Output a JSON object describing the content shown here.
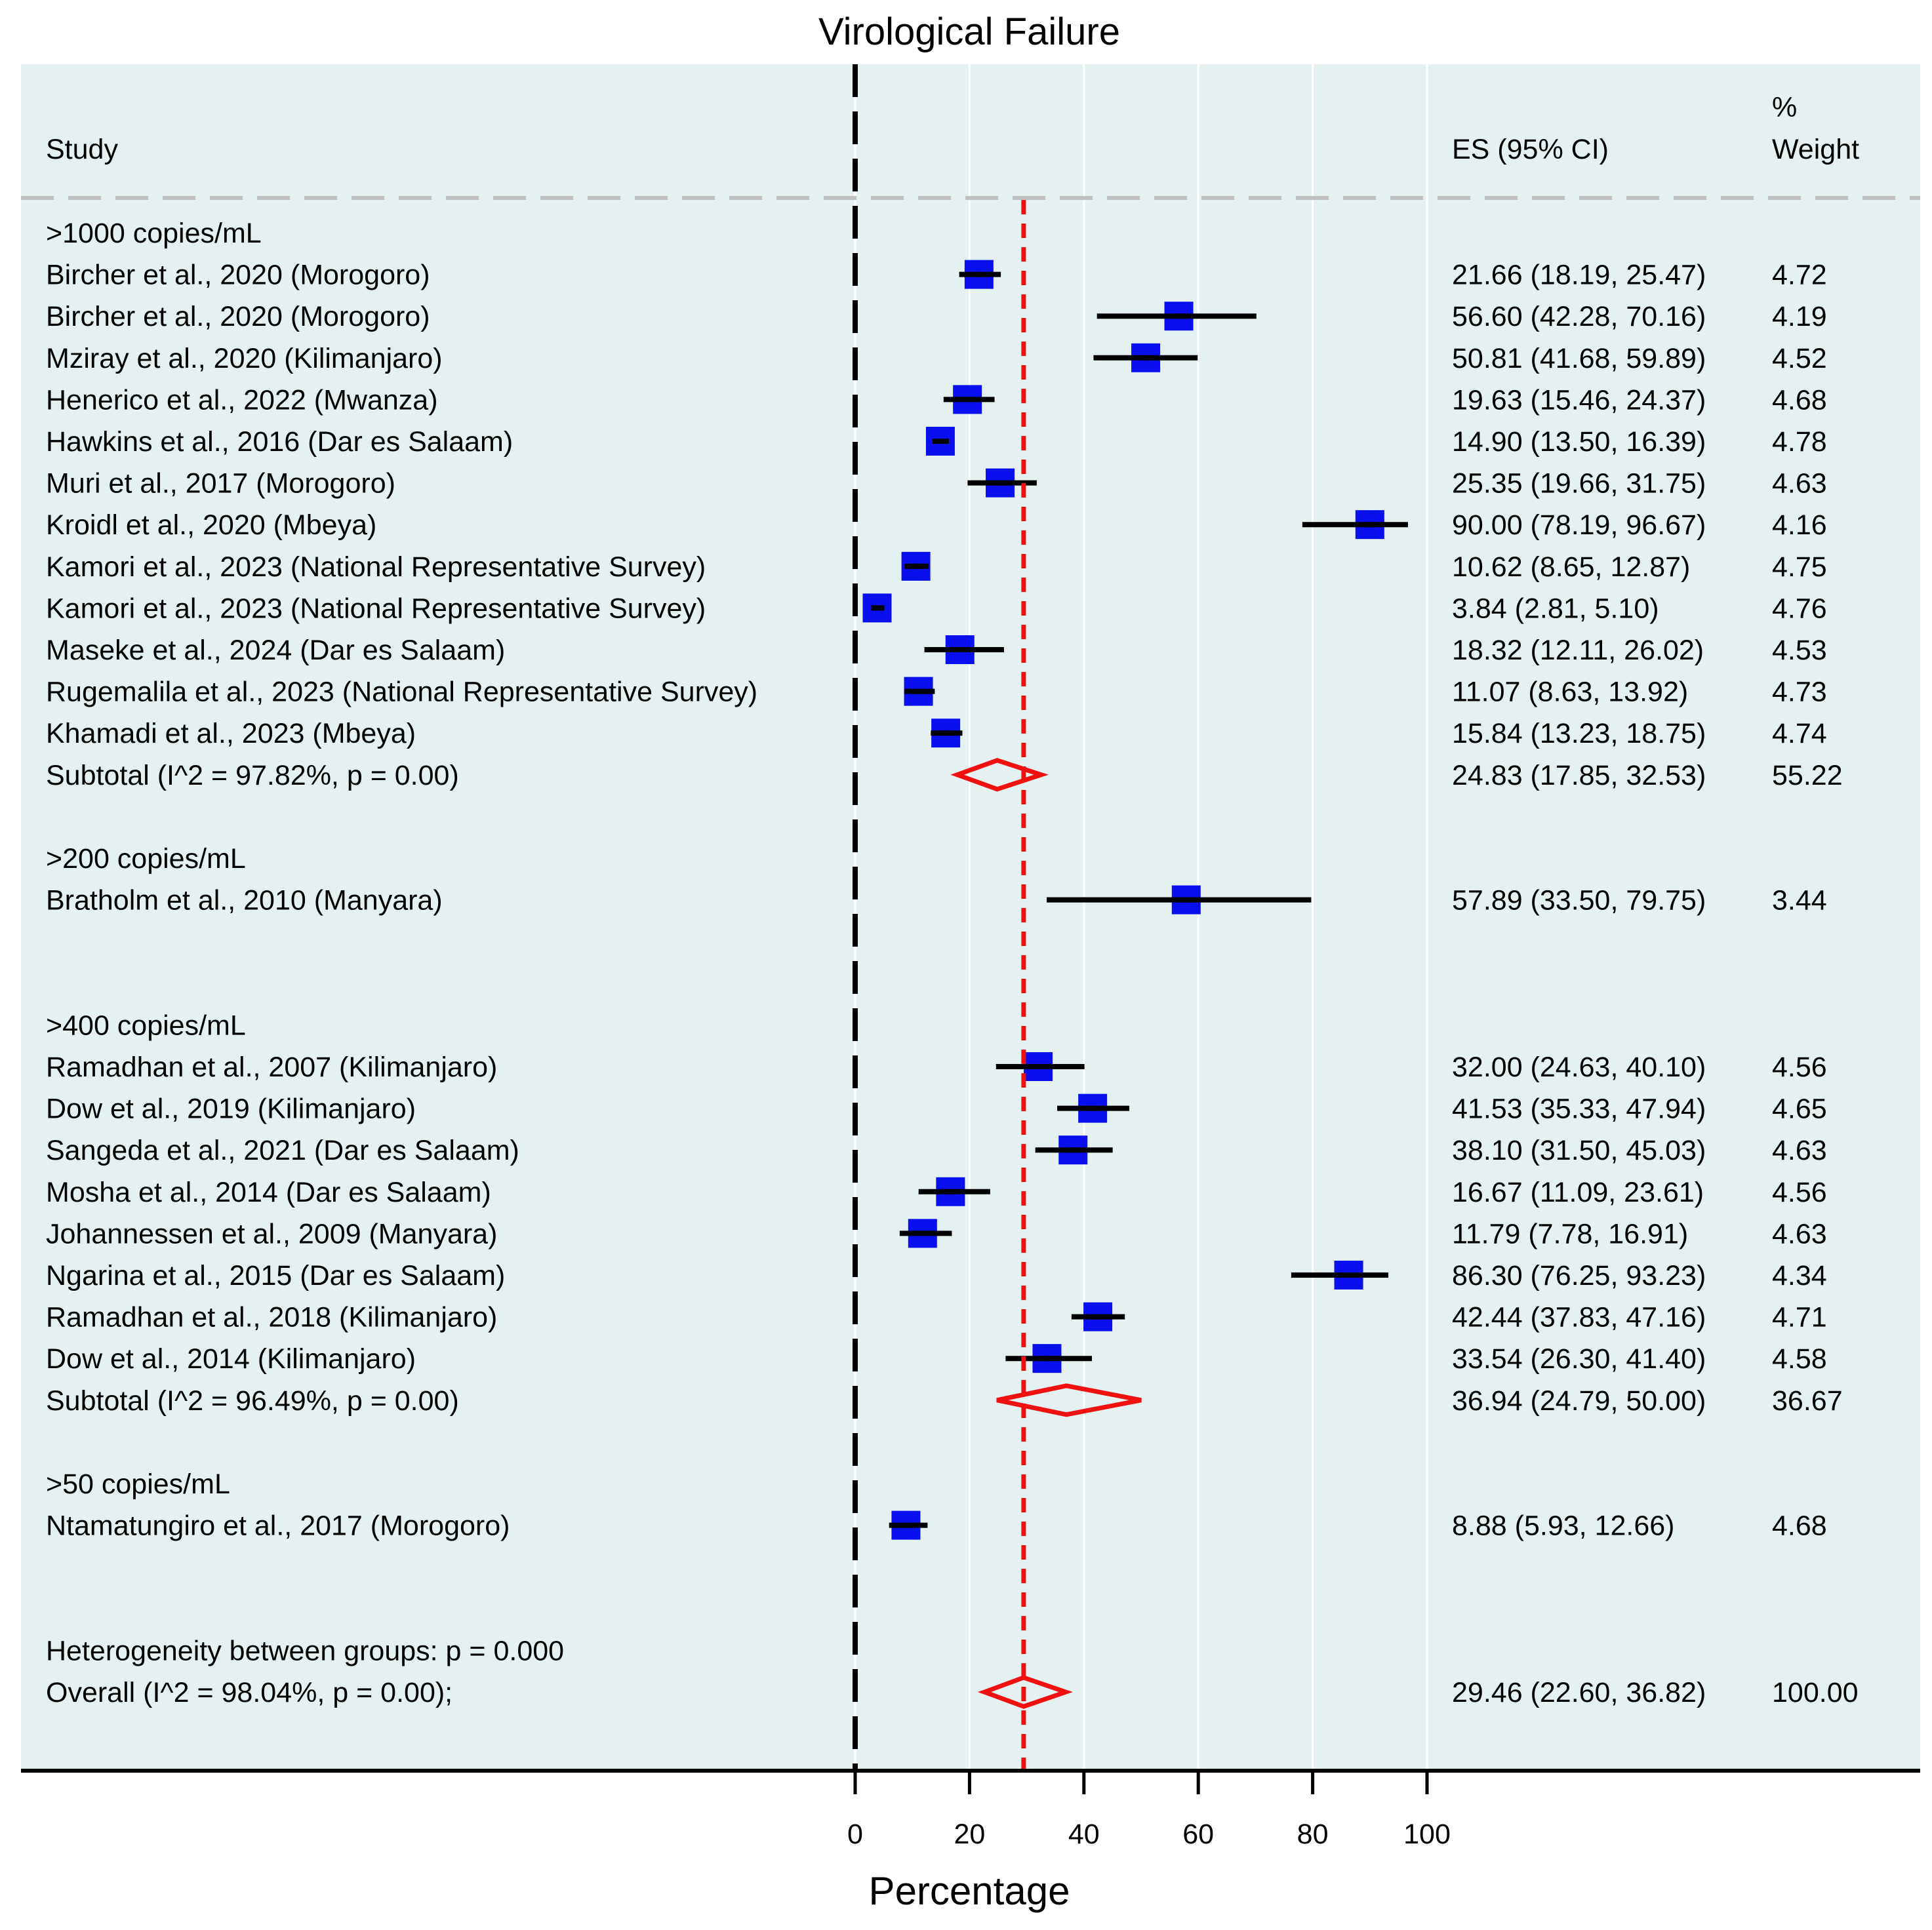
{
  "chart_data": {
    "type": "forest",
    "title": "Virological Failure",
    "xlabel": "Percentage",
    "xlim": [
      0,
      100
    ],
    "xticks": [
      "0",
      "20",
      "40",
      "60",
      "80",
      "100"
    ],
    "tick_values": [
      0,
      20,
      40,
      60,
      80,
      100
    ],
    "reference_line": 0,
    "overall_estimate_line": 29.46,
    "background_color": "#e5f1f1",
    "marker_color": "#0a0ff0",
    "summary_color": "#f01010",
    "headers": {
      "study": "Study",
      "es": "ES (95% CI)",
      "weight_line1": "%",
      "weight_line2": "Weight"
    },
    "rows": [
      {
        "kind": "group",
        "label": ">1000 copies/mL"
      },
      {
        "kind": "study",
        "label": "Bircher et al., 2020 (Morogoro)",
        "es": 21.66,
        "lo": 18.19,
        "hi": 25.47,
        "es_text": "21.66 (18.19, 25.47)",
        "weight": "4.72"
      },
      {
        "kind": "study",
        "label": "Bircher et al., 2020 (Morogoro)",
        "es": 56.6,
        "lo": 42.28,
        "hi": 70.16,
        "es_text": "56.60 (42.28, 70.16)",
        "weight": "4.19"
      },
      {
        "kind": "study",
        "label": "Mziray et al., 2020 (Kilimanjaro)",
        "es": 50.81,
        "lo": 41.68,
        "hi": 59.89,
        "es_text": "50.81 (41.68, 59.89)",
        "weight": "4.52"
      },
      {
        "kind": "study",
        "label": "Henerico et al., 2022 (Mwanza)",
        "es": 19.63,
        "lo": 15.46,
        "hi": 24.37,
        "es_text": "19.63 (15.46, 24.37)",
        "weight": "4.68"
      },
      {
        "kind": "study",
        "label": "Hawkins et al., 2016 (Dar es Salaam)",
        "es": 14.9,
        "lo": 13.5,
        "hi": 16.39,
        "es_text": "14.90 (13.50, 16.39)",
        "weight": "4.78"
      },
      {
        "kind": "study",
        "label": "Muri et al., 2017  (Morogoro)",
        "es": 25.35,
        "lo": 19.66,
        "hi": 31.75,
        "es_text": "25.35 (19.66, 31.75)",
        "weight": "4.63"
      },
      {
        "kind": "study",
        "label": "Kroidl et al., 2020 (Mbeya)",
        "es": 90.0,
        "lo": 78.19,
        "hi": 96.67,
        "es_text": "90.00 (78.19, 96.67)",
        "weight": "4.16"
      },
      {
        "kind": "study",
        "label": "Kamori et al., 2023 (National Representative Survey)",
        "es": 10.62,
        "lo": 8.65,
        "hi": 12.87,
        "es_text": "10.62 (8.65, 12.87)",
        "weight": "4.75"
      },
      {
        "kind": "study",
        "label": "Kamori et al., 2023 (National Representative Survey)",
        "es": 3.84,
        "lo": 2.81,
        "hi": 5.1,
        "es_text": "3.84 (2.81, 5.10)",
        "weight": "4.76"
      },
      {
        "kind": "study",
        "label": "Maseke et al., 2024 (Dar es Salaam)",
        "es": 18.32,
        "lo": 12.11,
        "hi": 26.02,
        "es_text": "18.32 (12.11, 26.02)",
        "weight": "4.53"
      },
      {
        "kind": "study",
        "label": "Rugemalila et al., 2023 (National Representative Survey)",
        "es": 11.07,
        "lo": 8.63,
        "hi": 13.92,
        "es_text": "11.07 (8.63, 13.92)",
        "weight": "4.73"
      },
      {
        "kind": "study",
        "label": "Khamadi et al., 2023 (Mbeya)",
        "es": 15.84,
        "lo": 13.23,
        "hi": 18.75,
        "es_text": "15.84 (13.23, 18.75)",
        "weight": "4.74"
      },
      {
        "kind": "subtotal",
        "label": "Subtotal  (I^2 = 97.82%, p = 0.00)",
        "es": 24.83,
        "lo": 17.85,
        "hi": 32.53,
        "es_text": "24.83 (17.85, 32.53)",
        "weight": "55.22"
      },
      {
        "kind": "blank"
      },
      {
        "kind": "group",
        "label": ">200 copies/mL"
      },
      {
        "kind": "study",
        "label": "Bratholm et al., 2010 (Manyara)",
        "es": 57.89,
        "lo": 33.5,
        "hi": 79.75,
        "es_text": "57.89 (33.50, 79.75)",
        "weight": "3.44"
      },
      {
        "kind": "blank"
      },
      {
        "kind": "blank"
      },
      {
        "kind": "group",
        "label": ">400 copies/mL"
      },
      {
        "kind": "study",
        "label": "Ramadhan et al., 2007 (Kilimanjaro)",
        "es": 32.0,
        "lo": 24.63,
        "hi": 40.1,
        "es_text": "32.00 (24.63, 40.10)",
        "weight": "4.56"
      },
      {
        "kind": "study",
        "label": "Dow et al., 2019 (Kilimanjaro)",
        "es": 41.53,
        "lo": 35.33,
        "hi": 47.94,
        "es_text": "41.53 (35.33, 47.94)",
        "weight": "4.65"
      },
      {
        "kind": "study",
        "label": "Sangeda et al., 2021 (Dar es Salaam)",
        "es": 38.1,
        "lo": 31.5,
        "hi": 45.03,
        "es_text": "38.10 (31.50, 45.03)",
        "weight": "4.63"
      },
      {
        "kind": "study",
        "label": "Mosha et al., 2014 (Dar es Salaam)",
        "es": 16.67,
        "lo": 11.09,
        "hi": 23.61,
        "es_text": "16.67 (11.09, 23.61)",
        "weight": "4.56"
      },
      {
        "kind": "study",
        "label": "Johannessen et al., 2009  (Manyara)",
        "es": 11.79,
        "lo": 7.78,
        "hi": 16.91,
        "es_text": "11.79 (7.78, 16.91)",
        "weight": "4.63"
      },
      {
        "kind": "study",
        "label": "Ngarina et al., 2015 (Dar es Salaam)",
        "es": 86.3,
        "lo": 76.25,
        "hi": 93.23,
        "es_text": "86.30 (76.25, 93.23)",
        "weight": "4.34"
      },
      {
        "kind": "study",
        "label": "Ramadhan et al., 2018 (Kilimanjaro)",
        "es": 42.44,
        "lo": 37.83,
        "hi": 47.16,
        "es_text": "42.44 (37.83, 47.16)",
        "weight": "4.71"
      },
      {
        "kind": "study",
        "label": "Dow et al., 2014 (Kilimanjaro)",
        "es": 33.54,
        "lo": 26.3,
        "hi": 41.4,
        "es_text": "33.54 (26.30, 41.40)",
        "weight": "4.58"
      },
      {
        "kind": "subtotal",
        "label": "Subtotal  (I^2 = 96.49%, p = 0.00)",
        "es": 36.94,
        "lo": 24.79,
        "hi": 50.0,
        "es_text": "36.94 (24.79, 50.00)",
        "weight": "36.67"
      },
      {
        "kind": "blank"
      },
      {
        "kind": "group",
        "label": ">50 copies/mL"
      },
      {
        "kind": "study",
        "label": "Ntamatungiro et al., 2017  (Morogoro)",
        "es": 8.88,
        "lo": 5.93,
        "hi": 12.66,
        "es_text": "8.88 (5.93, 12.66)",
        "weight": "4.68"
      },
      {
        "kind": "blank"
      },
      {
        "kind": "blank"
      },
      {
        "kind": "group",
        "label": "Heterogeneity between groups: p = 0.000"
      },
      {
        "kind": "subtotal",
        "label": "Overall  (I^2 = 98.04%, p = 0.00);",
        "es": 29.46,
        "lo": 22.6,
        "hi": 36.82,
        "es_text": "29.46 (22.60, 36.82)",
        "weight": "100.00"
      }
    ]
  }
}
